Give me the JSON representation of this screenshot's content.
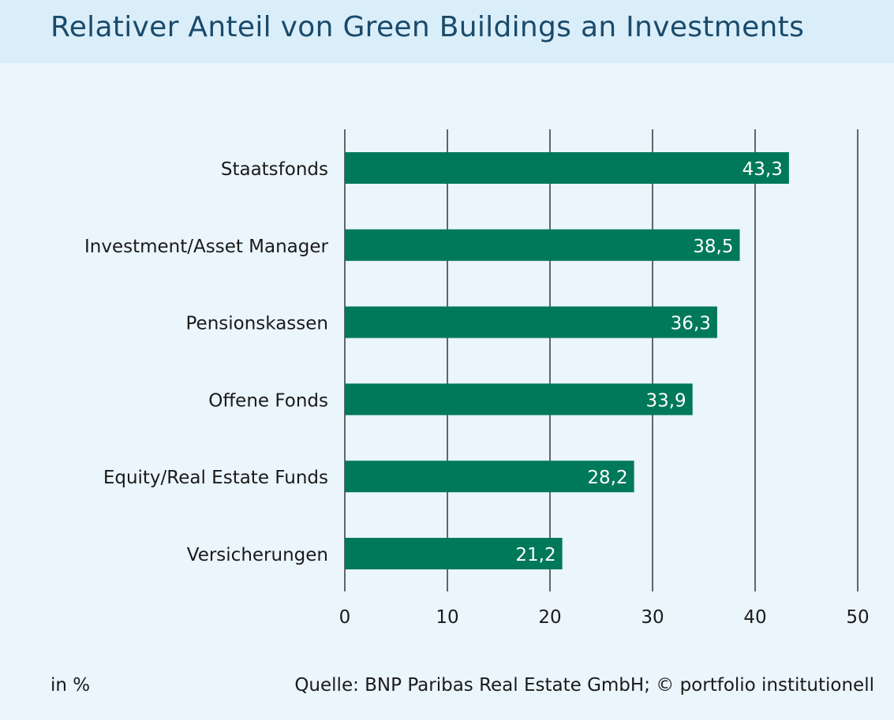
{
  "title": "Relativer Anteil von Green Buildings an Investments",
  "unit_note": "in %",
  "source": "Quelle: BNP Paribas Real Estate GmbH; © portfolio institutionell",
  "colors": {
    "bar": "#00795a",
    "bar_label": "#ffffff",
    "grid": "#1a1a1a",
    "title": "#1a4a6b",
    "background": "#eaf5fc",
    "header_background": "#d9eef9"
  },
  "chart_data": {
    "type": "bar",
    "orientation": "horizontal",
    "categories": [
      "Staatsfonds",
      "Investment/Asset Manager",
      "Pensionskassen",
      "Offene Fonds",
      "Equity/Real Estate Funds",
      "Versicherungen"
    ],
    "values": [
      43.3,
      38.5,
      36.3,
      33.9,
      28.2,
      21.2
    ],
    "value_labels": [
      "43,3",
      "38,5",
      "36,3",
      "33,9",
      "28,2",
      "21,2"
    ],
    "xlim": [
      0,
      50
    ],
    "xticks": [
      0,
      10,
      20,
      30,
      40,
      50
    ],
    "grid": true,
    "xlabel": "",
    "ylabel": ""
  }
}
